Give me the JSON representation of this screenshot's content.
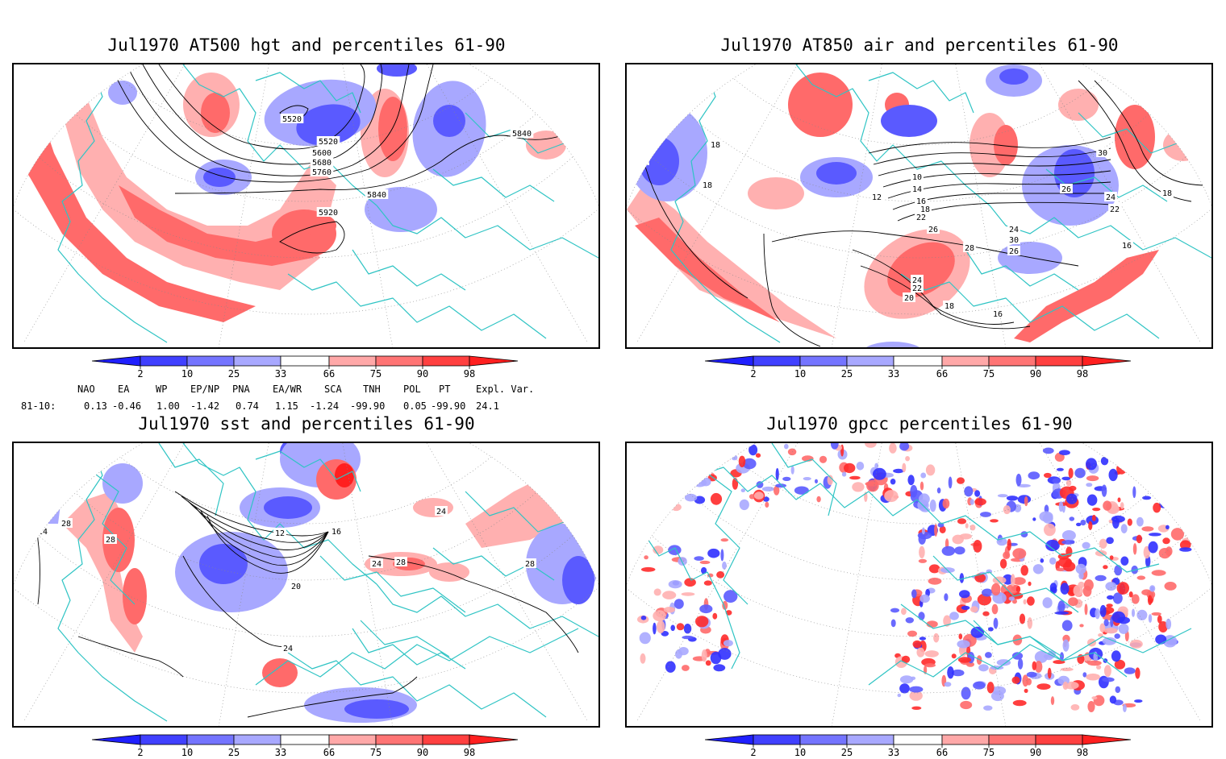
{
  "panels": [
    {
      "id": "hgt500",
      "title": "Jul1970 AT500 hgt and percentiles 61-90",
      "contour_labels": [
        "5520",
        "5520",
        "5600",
        "5680",
        "5760",
        "5840",
        "5840",
        "5920"
      ]
    },
    {
      "id": "air850",
      "title": "Jul1970 AT850 air and percentiles 61-90",
      "contour_labels": [
        "14",
        "16",
        "18",
        "18",
        "12",
        "10",
        "14",
        "16",
        "18",
        "22",
        "24",
        "26",
        "28",
        "30",
        "26",
        "24",
        "22",
        "20",
        "18",
        "16",
        "30",
        "26",
        "24",
        "22",
        "18",
        "16"
      ]
    },
    {
      "id": "sst",
      "title": "Jul1970 sst and percentiles 61-90",
      "contour_labels": [
        "28",
        "28",
        "24",
        "24",
        "28",
        "16",
        "12",
        "20",
        "24",
        "24",
        "28",
        "24",
        "28"
      ]
    },
    {
      "id": "gpcc",
      "title": "Jul1970 gpcc percentiles 61-90",
      "contour_labels": []
    }
  ],
  "colorbar": {
    "labels": [
      "2",
      "10",
      "25",
      "33",
      "66",
      "75",
      "90",
      "98"
    ],
    "colors": [
      "#1f1fff",
      "#4040ff",
      "#7474ff",
      "#a8a8ff",
      "#ffffff",
      "#ffa8a8",
      "#ff7474",
      "#ff4040",
      "#ff1f1f"
    ]
  },
  "teleconnections": {
    "headers": [
      "NAO",
      "EA",
      "WP",
      "EP/NP",
      "PNA",
      "EA/WR",
      "SCA",
      "TNH",
      "POL",
      "PT",
      "Expl. Var."
    ],
    "row_label": "81-10:",
    "values": [
      "0.13",
      "-0.46",
      "1.00",
      "-1.42",
      "0.74",
      "1.15",
      "-1.24",
      "-99.90",
      "0.05",
      "-99.90",
      "24.1"
    ]
  },
  "map_colors": {
    "land_outline": "#2fc4c4",
    "contour": "#000000",
    "grid": "#888888",
    "red": "#ff6a6a",
    "lightred": "#ffb0b0",
    "blue": "#5a5aff",
    "lightblue": "#a8a8ff"
  }
}
